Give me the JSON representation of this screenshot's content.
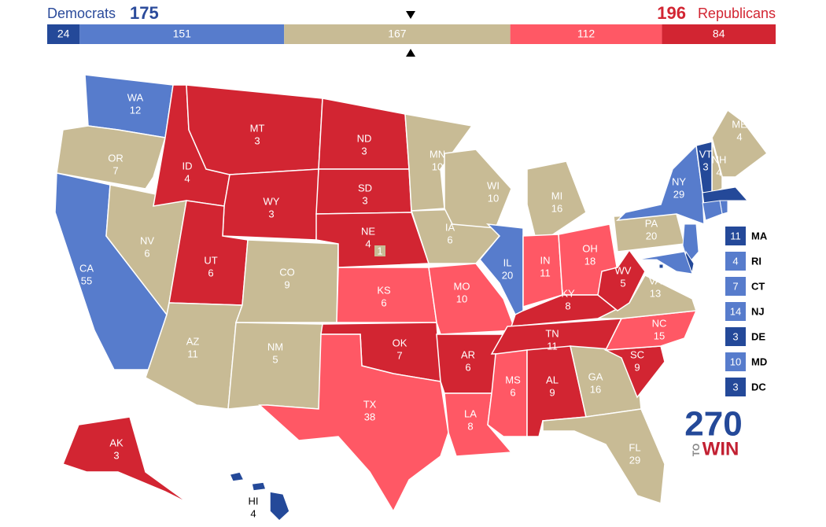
{
  "header": {
    "dem_label": "Democrats",
    "dem_total": 175,
    "rep_total": 196,
    "rep_label": "Republicans"
  },
  "colors": {
    "safe-d": "#244999",
    "likely-d": "#577ccc",
    "tossup": "#c8bb95",
    "likely-r": "#ff5865",
    "safe-r": "#d22532"
  },
  "bar": {
    "segments": [
      {
        "value": 24,
        "rating": "safe-d"
      },
      {
        "value": 151,
        "rating": "likely-d"
      },
      {
        "value": 167,
        "rating": "tossup"
      },
      {
        "value": 112,
        "rating": "likely-r"
      },
      {
        "value": 84,
        "rating": "safe-r"
      }
    ]
  },
  "states": [
    {
      "abbr": "WA",
      "ev": 12,
      "rating": "likely-d"
    },
    {
      "abbr": "OR",
      "ev": 7,
      "rating": "tossup"
    },
    {
      "abbr": "CA",
      "ev": 55,
      "rating": "likely-d"
    },
    {
      "abbr": "NV",
      "ev": 6,
      "rating": "tossup"
    },
    {
      "abbr": "ID",
      "ev": 4,
      "rating": "safe-r"
    },
    {
      "abbr": "MT",
      "ev": 3,
      "rating": "safe-r"
    },
    {
      "abbr": "WY",
      "ev": 3,
      "rating": "safe-r"
    },
    {
      "abbr": "UT",
      "ev": 6,
      "rating": "safe-r"
    },
    {
      "abbr": "AZ",
      "ev": 11,
      "rating": "tossup"
    },
    {
      "abbr": "CO",
      "ev": 9,
      "rating": "tossup"
    },
    {
      "abbr": "NM",
      "ev": 5,
      "rating": "tossup"
    },
    {
      "abbr": "ND",
      "ev": 3,
      "rating": "safe-r"
    },
    {
      "abbr": "SD",
      "ev": 3,
      "rating": "safe-r"
    },
    {
      "abbr": "NE",
      "ev": 4,
      "rating": "safe-r"
    },
    {
      "abbr": "KS",
      "ev": 6,
      "rating": "likely-r"
    },
    {
      "abbr": "OK",
      "ev": 7,
      "rating": "safe-r"
    },
    {
      "abbr": "TX",
      "ev": 38,
      "rating": "likely-r"
    },
    {
      "abbr": "MN",
      "ev": 10,
      "rating": "tossup"
    },
    {
      "abbr": "IA",
      "ev": 6,
      "rating": "tossup"
    },
    {
      "abbr": "MO",
      "ev": 10,
      "rating": "likely-r"
    },
    {
      "abbr": "AR",
      "ev": 6,
      "rating": "safe-r"
    },
    {
      "abbr": "LA",
      "ev": 8,
      "rating": "likely-r"
    },
    {
      "abbr": "WI",
      "ev": 10,
      "rating": "tossup"
    },
    {
      "abbr": "IL",
      "ev": 20,
      "rating": "likely-d"
    },
    {
      "abbr": "MI",
      "ev": 16,
      "rating": "tossup"
    },
    {
      "abbr": "IN",
      "ev": 11,
      "rating": "likely-r"
    },
    {
      "abbr": "OH",
      "ev": 18,
      "rating": "likely-r"
    },
    {
      "abbr": "KY",
      "ev": 8,
      "rating": "safe-r"
    },
    {
      "abbr": "TN",
      "ev": 11,
      "rating": "safe-r"
    },
    {
      "abbr": "MS",
      "ev": 6,
      "rating": "likely-r"
    },
    {
      "abbr": "AL",
      "ev": 9,
      "rating": "safe-r"
    },
    {
      "abbr": "GA",
      "ev": 16,
      "rating": "tossup"
    },
    {
      "abbr": "FL",
      "ev": 29,
      "rating": "tossup"
    },
    {
      "abbr": "SC",
      "ev": 9,
      "rating": "safe-r"
    },
    {
      "abbr": "NC",
      "ev": 15,
      "rating": "likely-r"
    },
    {
      "abbr": "VA",
      "ev": 13,
      "rating": "tossup"
    },
    {
      "abbr": "WV",
      "ev": 5,
      "rating": "safe-r"
    },
    {
      "abbr": "PA",
      "ev": 20,
      "rating": "tossup"
    },
    {
      "abbr": "NY",
      "ev": 29,
      "rating": "likely-d"
    },
    {
      "abbr": "ME",
      "ev": 4,
      "rating": "tossup"
    },
    {
      "abbr": "NH",
      "ev": 4,
      "rating": "tossup"
    },
    {
      "abbr": "VT",
      "ev": 3,
      "rating": "safe-d"
    },
    {
      "abbr": "AK",
      "ev": 3,
      "rating": "safe-r"
    },
    {
      "abbr": "HI",
      "ev": 4,
      "rating": "safe-d"
    }
  ],
  "ne_district": {
    "ev": 1,
    "rating": "tossup"
  },
  "callouts": [
    {
      "abbr": "MA",
      "ev": 11,
      "rating": "safe-d"
    },
    {
      "abbr": "RI",
      "ev": 4,
      "rating": "likely-d"
    },
    {
      "abbr": "CT",
      "ev": 7,
      "rating": "likely-d"
    },
    {
      "abbr": "NJ",
      "ev": 14,
      "rating": "likely-d"
    },
    {
      "abbr": "DE",
      "ev": 3,
      "rating": "safe-d"
    },
    {
      "abbr": "MD",
      "ev": 10,
      "rating": "likely-d"
    },
    {
      "abbr": "DC",
      "ev": 3,
      "rating": "safe-d"
    }
  ],
  "logo": {
    "number": "270",
    "to": "TO",
    "win": "WIN"
  }
}
